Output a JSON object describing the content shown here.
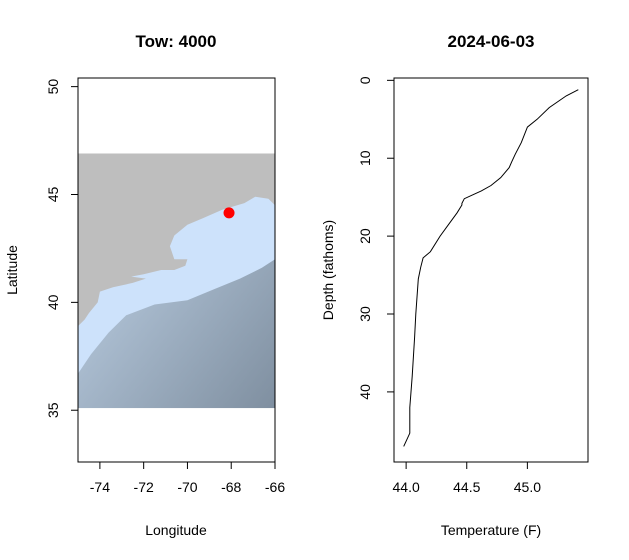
{
  "chart_data": [
    {
      "type": "map",
      "title": "Tow: 4000",
      "xlabel": "Longitude",
      "ylabel": "Latitude",
      "xlim": [
        -75,
        -66
      ],
      "ylim": [
        32.6,
        50.4
      ],
      "x_ticks": [
        -74,
        -72,
        -70,
        -68,
        -66
      ],
      "y_ticks": [
        35,
        40,
        45,
        50
      ],
      "map_extent": {
        "lon": [
          -75,
          -66
        ],
        "lat": [
          35.1,
          46.9
        ]
      },
      "coastline": [
        [
          -75,
          38.9
        ],
        [
          -74.7,
          39.2
        ],
        [
          -74.5,
          39.5
        ],
        [
          -74.1,
          40.0
        ],
        [
          -74.0,
          40.5
        ],
        [
          -73.4,
          40.7
        ],
        [
          -72.5,
          40.9
        ],
        [
          -71.9,
          41.1
        ],
        [
          -72.6,
          41.2
        ],
        [
          -73.6,
          41.0
        ],
        [
          -72.0,
          41.3
        ],
        [
          -71.2,
          41.5
        ],
        [
          -70.6,
          41.5
        ],
        [
          -70.1,
          41.7
        ],
        [
          -70.0,
          42.0
        ],
        [
          -70.6,
          42.0
        ],
        [
          -70.8,
          42.6
        ],
        [
          -70.6,
          43.1
        ],
        [
          -70.0,
          43.6
        ],
        [
          -69.3,
          43.9
        ],
        [
          -68.4,
          44.3
        ],
        [
          -67.4,
          44.6
        ],
        [
          -66.9,
          44.9
        ],
        [
          -66.3,
          44.8
        ],
        [
          -66.0,
          44.5
        ]
      ],
      "marker": {
        "lon": -68.1,
        "lat": 44.15,
        "color": "#ff0000"
      },
      "colors": {
        "land": "#bebebe",
        "shelf": "#cde2fb",
        "deep": "#8a9aab"
      }
    },
    {
      "type": "line",
      "title": "2024-06-03",
      "xlabel": "Temperature (F)",
      "ylabel": "Depth (fathoms)",
      "xlim": [
        43.9,
        45.5
      ],
      "ylim": [
        49,
        -0.3
      ],
      "x_ticks": [
        44.0,
        44.5,
        45.0
      ],
      "y_ticks": [
        0,
        10,
        20,
        30,
        40
      ],
      "series": [
        {
          "x": [
            45.42,
            45.32,
            45.18,
            45.08,
            45.0,
            44.95,
            44.9,
            44.87,
            44.85,
            44.78,
            44.7,
            44.62,
            44.55,
            44.48,
            44.46,
            44.46,
            44.42,
            44.35,
            44.28,
            44.2,
            44.14,
            44.12,
            44.1,
            44.08,
            44.07,
            44.05,
            44.03,
            44.03,
            43.98
          ],
          "y": [
            1.2,
            2,
            3.5,
            5,
            6,
            8,
            9.5,
            10.5,
            11.2,
            12.5,
            13.5,
            14.2,
            14.7,
            15.2,
            15.8,
            16,
            17,
            18.5,
            20,
            22,
            22.8,
            24,
            25.5,
            30,
            33,
            38,
            42,
            45.3,
            47
          ]
        }
      ],
      "grid": false
    }
  ]
}
